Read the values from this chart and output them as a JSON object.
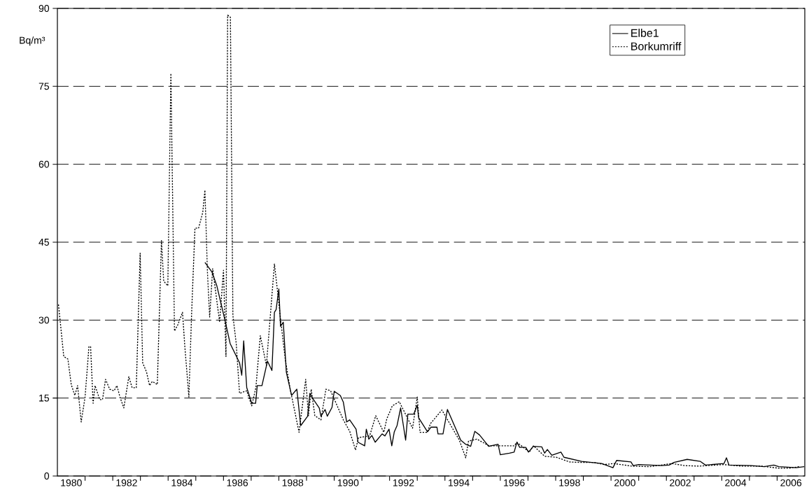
{
  "chart_data": {
    "type": "line",
    "ylabel": "Bq/m³",
    "xlim": [
      1980,
      2007
    ],
    "ylim": [
      0,
      90
    ],
    "yticks": [
      0,
      15,
      30,
      45,
      60,
      75,
      90
    ],
    "xticks": [
      {
        "value": 1980.5,
        "label": "1980"
      },
      {
        "value": 1982.5,
        "label": "1982"
      },
      {
        "value": 1984.5,
        "label": "1984"
      },
      {
        "value": 1986.5,
        "label": "1986"
      },
      {
        "value": 1988.5,
        "label": "1988"
      },
      {
        "value": 1990.5,
        "label": "1990"
      },
      {
        "value": 1992.5,
        "label": "1992"
      },
      {
        "value": 1994.5,
        "label": "1994"
      },
      {
        "value": 1996.5,
        "label": "1996"
      },
      {
        "value": 1998.5,
        "label": "1998"
      },
      {
        "value": 2000.5,
        "label": "2000"
      },
      {
        "value": 2002.5,
        "label": "2002"
      },
      {
        "value": 2004.5,
        "label": "2004"
      },
      {
        "value": 2006.5,
        "label": "2006"
      },
      {
        "value": 1981,
        "label": null
      },
      {
        "value": 1982,
        "label": null
      },
      {
        "value": 1983,
        "label": null
      },
      {
        "value": 1984,
        "label": null
      },
      {
        "value": 1985,
        "label": null
      },
      {
        "value": 1986,
        "label": null
      },
      {
        "value": 1987,
        "label": null
      },
      {
        "value": 1988,
        "label": null
      },
      {
        "value": 1989,
        "label": null
      },
      {
        "value": 1990,
        "label": null
      },
      {
        "value": 1991,
        "label": null
      },
      {
        "value": 1992,
        "label": null
      },
      {
        "value": 1993,
        "label": null
      },
      {
        "value": 1994,
        "label": null
      },
      {
        "value": 1995,
        "label": null
      },
      {
        "value": 1996,
        "label": null
      },
      {
        "value": 1997,
        "label": null
      },
      {
        "value": 1998,
        "label": null
      },
      {
        "value": 1999,
        "label": null
      },
      {
        "value": 2000,
        "label": null
      },
      {
        "value": 2001,
        "label": null
      },
      {
        "value": 2002,
        "label": null
      },
      {
        "value": 2003,
        "label": null
      },
      {
        "value": 2004,
        "label": null
      },
      {
        "value": 2005,
        "label": null
      },
      {
        "value": 2006,
        "label": null
      }
    ],
    "grid": "y",
    "legend": "top right",
    "series": [
      {
        "name": "Elbe1",
        "color": "#000000",
        "line_style": "solid",
        "x": [
          1985.33,
          1985.58,
          1985.76,
          1986.04,
          1986.24,
          1986.58,
          1986.66,
          1986.73,
          1986.84,
          1987.02,
          1987.16,
          1987.22,
          1987.39,
          1987.59,
          1987.75,
          1987.84,
          1987.9,
          1988.0,
          1988.06,
          1988.16,
          1988.27,
          1988.46,
          1988.65,
          1988.79,
          1989.04,
          1989.12,
          1989.24,
          1989.46,
          1989.52,
          1989.67,
          1989.75,
          1989.92,
          1990.0,
          1990.22,
          1990.33,
          1990.45,
          1990.56,
          1990.79,
          1990.86,
          1991.1,
          1991.16,
          1991.25,
          1991.36,
          1991.48,
          1991.73,
          1991.83,
          1991.98,
          1992.08,
          1992.17,
          1992.27,
          1992.4,
          1992.58,
          1992.66,
          1992.87,
          1993.0,
          1993.05,
          1993.37,
          1993.5,
          1993.71,
          1993.75,
          1993.93,
          1994.09,
          1994.57,
          1994.75,
          1994.93,
          1995.08,
          1995.25,
          1995.58,
          1995.92,
          1996.0,
          1996.33,
          1996.5,
          1996.6,
          1996.7,
          1996.92,
          1997.02,
          1997.19,
          1997.5,
          1997.6,
          1997.7,
          1997.86,
          1998.19,
          1998.3,
          1998.94,
          1999.66,
          2000.07,
          2000.2,
          2000.72,
          2000.8,
          2001.0,
          2001.82,
          2002.1,
          2002.27,
          2002.75,
          2003.23,
          2003.41,
          2004.08,
          2004.17,
          2004.26,
          2005.07,
          2005.53,
          2005.88,
          2006.06,
          2006.69,
          2006.98
        ],
        "values": [
          41.1,
          39.3,
          36.6,
          30.3,
          25.5,
          21.8,
          19.4,
          26,
          17,
          14,
          14,
          17.4,
          17.4,
          22.1,
          20.3,
          31.5,
          32,
          36,
          28.8,
          29.6,
          20,
          15.5,
          16.7,
          9.7,
          11.5,
          15.9,
          14.8,
          13.1,
          11.5,
          12.8,
          11.5,
          13.2,
          16.3,
          15.5,
          14.2,
          10.4,
          10.8,
          9.0,
          6.5,
          5.8,
          9.0,
          7.1,
          7.8,
          6.5,
          8.1,
          7.7,
          9.0,
          5.8,
          8.5,
          9.7,
          13.1,
          6.9,
          11.9,
          11.9,
          13.6,
          11.2,
          8.5,
          9.4,
          9.4,
          8.1,
          8.1,
          12.8,
          6.9,
          6.1,
          5.7,
          8.6,
          7.9,
          5.7,
          6.1,
          4.1,
          4.4,
          4.6,
          6.5,
          5.5,
          5.5,
          4.6,
          5.7,
          5.6,
          4.4,
          5.1,
          4.0,
          4.6,
          3.6,
          2.8,
          2.4,
          1.6,
          3.0,
          2.7,
          2.0,
          2.2,
          2.0,
          2.1,
          2.6,
          3.2,
          2.8,
          2.1,
          2.4,
          3.5,
          2.1,
          2.0,
          1.8,
          2.1,
          1.8,
          1.6,
          1.8
        ]
      },
      {
        "name": "Borkumriff",
        "color": "#000000",
        "line_style": "dotted",
        "x": [
          1980.04,
          1980.23,
          1980.38,
          1980.5,
          1980.63,
          1980.73,
          1980.86,
          1981.0,
          1981.14,
          1981.2,
          1981.29,
          1981.36,
          1981.53,
          1981.63,
          1981.74,
          1981.89,
          1982.05,
          1982.15,
          1982.26,
          1982.4,
          1982.58,
          1982.7,
          1982.85,
          1982.99,
          1983.08,
          1983.22,
          1983.33,
          1983.43,
          1983.61,
          1983.76,
          1983.84,
          1983.99,
          1984.1,
          1984.23,
          1984.35,
          1984.52,
          1984.6,
          1984.75,
          1984.85,
          1984.97,
          1985.1,
          1985.25,
          1985.33,
          1985.42,
          1985.5,
          1985.61,
          1985.86,
          1986.0,
          1986.09,
          1986.15,
          1986.25,
          1986.34,
          1986.46,
          1986.58,
          1986.84,
          1987.02,
          1987.17,
          1987.33,
          1987.55,
          1987.84,
          1987.95,
          1988.06,
          1988.23,
          1988.4,
          1988.73,
          1988.97,
          1989.07,
          1989.17,
          1989.3,
          1989.52,
          1989.7,
          1989.87,
          1990.33,
          1990.56,
          1990.77,
          1990.88,
          1991.28,
          1991.5,
          1991.79,
          1991.9,
          1992.1,
          1992.35,
          1992.83,
          1993.0,
          1993.1,
          1993.36,
          1993.48,
          1993.89,
          1994.52,
          1994.75,
          1994.85,
          1995.15,
          1995.6,
          1996.5,
          1996.6,
          1997.05,
          1997.2,
          1997.6,
          1998.03,
          1998.5,
          1998.94,
          1999.4,
          1999.75,
          2000.1,
          2000.75,
          2001.4,
          2002.2,
          2002.65,
          2003.18,
          2004.08,
          2004.7,
          2005.43,
          2006.06,
          2006.43,
          2006.8
        ],
        "values": [
          33.0,
          23,
          22.5,
          17.6,
          15.5,
          17.4,
          10.4,
          15.2,
          24.9,
          24.9,
          14,
          17.4,
          14.7,
          14.7,
          18.6,
          16.7,
          16.4,
          17.4,
          15.2,
          13.1,
          19.1,
          17,
          17,
          42.9,
          21.8,
          20,
          17.4,
          18.2,
          17.6,
          45.3,
          37.5,
          36.6,
          77.5,
          27.9,
          29.1,
          31.5,
          25.2,
          15.2,
          31.5,
          47.7,
          47.7,
          50.7,
          55,
          39.3,
          30.6,
          39.9,
          29.6,
          39.6,
          23,
          88.7,
          88.3,
          30.9,
          25.5,
          15.9,
          16.4,
          13.5,
          17,
          27,
          21.3,
          40.8,
          35.7,
          30.3,
          22.5,
          17,
          8.4,
          18.6,
          11.6,
          16.7,
          11.6,
          10.8,
          16.7,
          16.4,
          10.8,
          8.6,
          5.0,
          7.4,
          7.7,
          11.6,
          8.4,
          11,
          13.5,
          14.3,
          9.2,
          15.2,
          8.4,
          8.4,
          10.1,
          12.7,
          6.9,
          3.5,
          6.7,
          7.1,
          5.8,
          5.8,
          6.5,
          4.6,
          5.8,
          3.8,
          3.6,
          2.7,
          2.6,
          2.6,
          2.2,
          2.4,
          1.9,
          1.8,
          2.4,
          2.0,
          1.9,
          2.2,
          1.9,
          1.9,
          1.5,
          1.5,
          1.8
        ]
      }
    ]
  }
}
